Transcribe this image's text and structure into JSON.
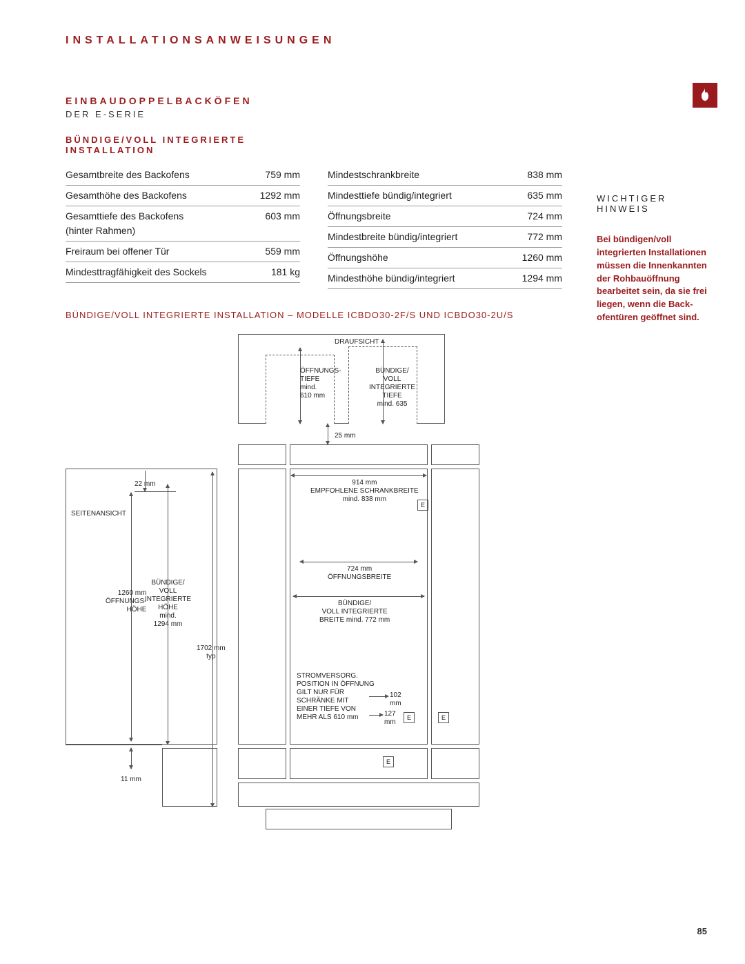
{
  "pageHeading": "INSTALLATIONSANWEISUNGEN",
  "sectionTitle": "EINBAUDOPPELBACKÖFEN",
  "series": "DER E-SERIE",
  "subhead": "BÜNDIGE/VOLL INTEGRIERTE\nINSTALLATION",
  "tableLeft": [
    {
      "label": "Gesamtbreite des Backofens",
      "val": "759 mm"
    },
    {
      "label": "Gesamthöhe des Backofens",
      "val": "1292 mm"
    },
    {
      "label": "Gesamttiefe des Backofens\n(hinter Rahmen)",
      "val": "603 mm"
    },
    {
      "label": "Freiraum bei offener Tür",
      "val": "559 mm"
    },
    {
      "label": "Mindesttragfähigkeit des Sockels",
      "val": "181 kg"
    }
  ],
  "tableRight": [
    {
      "label": "Mindestschrankbreite",
      "val": "838 mm"
    },
    {
      "label": "Mindesttiefe bündig/integriert",
      "val": "635 mm"
    },
    {
      "label": "Öffnungsbreite",
      "val": "724 mm"
    },
    {
      "label": "Mindestbreite bündig/integriert",
      "val": "772 mm"
    },
    {
      "label": "Öffnungshöhe",
      "val": "1260 mm"
    },
    {
      "label": "Mindesthöhe bündig/integriert",
      "val": "1294 mm"
    }
  ],
  "caption": "BÜNDIGE/VOLL INTEGRIERTE INSTALLATION – MODELLE ICBDO30-2F/S UND ICBDO30-2U/S",
  "sideNote": {
    "heading": "WICHTIGER\nHINWEIS",
    "body": "Bei bündigen/voll integrierten Installationen müssen die Innenkannten der Rohbauöffnung bearbeitet sein, da sie frei liegen, wenn die Back-ofentüren geöffnet sind."
  },
  "pageNum": "85",
  "diagram": {
    "topLabels": {
      "draufsicht": "DRAUFSICHT",
      "openingDepth": "ÖFFNUNGS-\nTIEFE\nmind.\n610 mm",
      "flushDepth": "BÜNDIGE/\nVOLL\nINTEGRIERTE\nTIEFE\nmind. 635",
      "gap": "25 mm"
    },
    "side": {
      "title": "SEITENANSICHT",
      "d22": "22 mm",
      "openingH": "1260 mm\nÖFFNUNGS-\nHÖHE",
      "flushH": "BÜNDIGE/\nVOLL\nINTEGRIERTE\nHÖHE\nmind.\n1294 mm",
      "typH": "1702 mm\ntyp",
      "d11": "11 mm"
    },
    "front": {
      "recW": "914 mm\nEMPFOHLENE SCHRANKBREITE\nmind. 838 mm",
      "openW": "724 mm\nÖFFNUNGSBREITE",
      "flushW": "BÜNDIGE/\nVOLL INTEGRIERTE\nBREITE mind. 772 mm",
      "power": "STROMVERSORG.\nPOSITION IN ÖFFNUNG\nGILT NUR FÜR\nSCHRÄNKE MIT\nEINER TIEFE VON\nMEHR ALS 610 mm",
      "d102": "102\nmm",
      "d127": "127\nmm",
      "E": "E"
    }
  },
  "colors": {
    "accent": "#9a1b1e",
    "line": "#555555",
    "text": "#222222",
    "bg": "#ffffff"
  }
}
